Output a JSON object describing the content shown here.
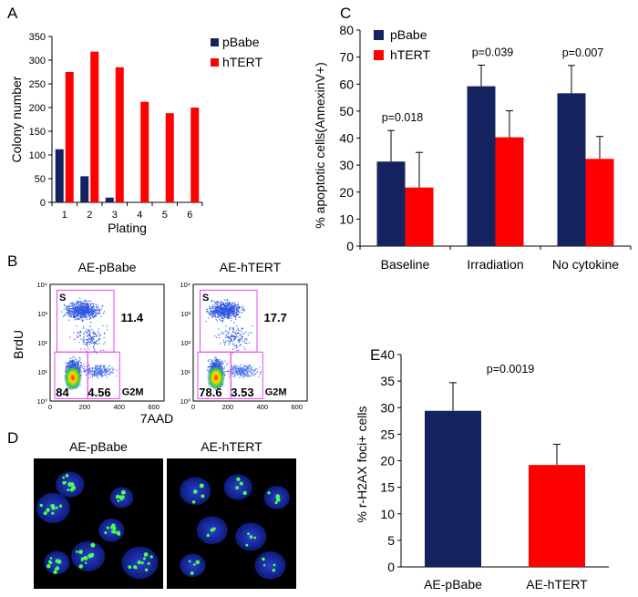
{
  "panels": {
    "A": {
      "letter": "A"
    },
    "B": {
      "letter": "B",
      "y_label": "BrdU",
      "x_label": "7AAD",
      "y_ticks": [
        "10⁴",
        "10³",
        "10²",
        "10¹",
        "10⁰"
      ],
      "x_ticks": [
        "0",
        "200",
        "400",
        "600"
      ]
    },
    "C": {
      "letter": "C"
    },
    "D": {
      "letter": "D"
    },
    "E": {
      "letter": "E"
    }
  },
  "colors": {
    "pBabe": "#14235f",
    "hTERT": "#ff0000",
    "gate": "#ee44ee"
  },
  "chart_data": [
    {
      "id": "A",
      "type": "bar",
      "xlabel": "Plating",
      "ylabel": "Colony number",
      "ylim": [
        0,
        350
      ],
      "yticks": [
        0,
        50,
        100,
        150,
        200,
        250,
        300,
        350
      ],
      "categories": [
        "1",
        "2",
        "3",
        "4",
        "5",
        "6"
      ],
      "series": [
        {
          "name": "pBabe",
          "values": [
            112,
            55,
            10,
            0,
            0,
            0
          ]
        },
        {
          "name": "hTERT",
          "values": [
            275,
            318,
            285,
            212,
            188,
            200
          ]
        }
      ],
      "legend": "top-right",
      "grid": false
    },
    {
      "id": "C",
      "type": "bar",
      "xlabel": "",
      "ylabel": "% apoptotic cells(AnnexinV+)",
      "ylim": [
        0,
        80
      ],
      "yticks": [
        0,
        10,
        20,
        30,
        40,
        50,
        60,
        70,
        80
      ],
      "categories": [
        "Baseline",
        "Irradiation",
        "No cytokine"
      ],
      "series": [
        {
          "name": "pBabe",
          "values": [
            31.3,
            59.2,
            56.6
          ],
          "error": [
            11.5,
            7.8,
            10.3
          ]
        },
        {
          "name": "hTERT",
          "values": [
            21.7,
            40.3,
            32.3
          ],
          "error": [
            13.0,
            9.8,
            8.3
          ]
        }
      ],
      "annotations": [
        "p=0.018",
        "p=0.039",
        "p=0.007"
      ],
      "legend": "top-left",
      "grid": false
    },
    {
      "id": "E",
      "type": "bar",
      "xlabel": "",
      "ylabel": "% r-H2AX foci+ cells",
      "ylim": [
        0,
        40
      ],
      "yticks": [
        0,
        5,
        10,
        15,
        20,
        25,
        30,
        35,
        40
      ],
      "categories": [
        "AE-pBabe",
        "AE-hTERT"
      ],
      "values": [
        29.4,
        19.2
      ],
      "error": [
        5.3,
        3.9
      ],
      "annotations": [
        "p=0.0019"
      ],
      "grid": false
    },
    {
      "id": "B",
      "type": "scatter",
      "xlabel": "7AAD",
      "ylabel": "BrdU",
      "plots": [
        {
          "title": "AE-pBabe",
          "gates": {
            "S": "11.4",
            "G1": "84",
            "G2M": "4.56"
          },
          "gate_label_S": "S",
          "gate_label_G2M": "G2M"
        },
        {
          "title": "AE-hTERT",
          "gates": {
            "S": "17.7",
            "G1": "78.6",
            "G2M": "3.53"
          },
          "gate_label_S": "S",
          "gate_label_G2M": "G2M"
        }
      ]
    }
  ],
  "images_D": [
    {
      "title": "AE-pBabe"
    },
    {
      "title": "AE-hTERT"
    }
  ]
}
